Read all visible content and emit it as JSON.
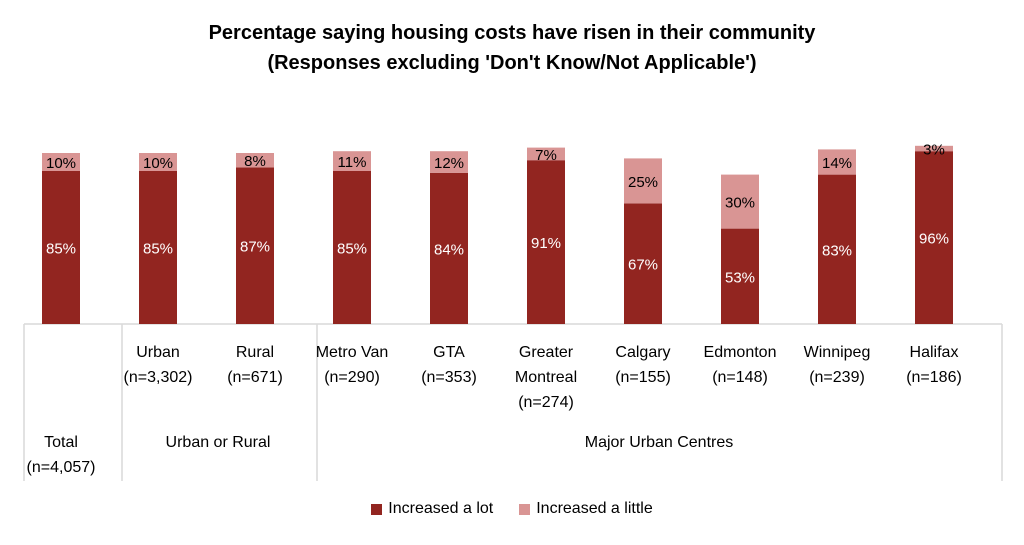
{
  "chart_data": {
    "type": "bar",
    "stacked": true,
    "title": "Percentage saying housing costs have risen in their community",
    "subtitle": "(Responses excluding 'Don't Know/Not Applicable')",
    "xlabel": "",
    "ylabel": "",
    "ylim": [
      0,
      100
    ],
    "grid": false,
    "legend_position": "bottom",
    "categories": [
      {
        "name": "Total",
        "n": "(n=4,057)",
        "group": 0
      },
      {
        "name": "Urban",
        "n": "(n=3,302)",
        "group": 1
      },
      {
        "name": "Rural",
        "n": "(n=671)",
        "group": 1
      },
      {
        "name": "Metro Van",
        "n": "(n=290)",
        "group": 2
      },
      {
        "name": "GTA",
        "n": "(n=353)",
        "group": 2
      },
      {
        "name": "Greater Montreal",
        "n": "(n=274)",
        "group": 2
      },
      {
        "name": "Calgary",
        "n": "(n=155)",
        "group": 2
      },
      {
        "name": "Edmonton",
        "n": "(n=148)",
        "group": 2
      },
      {
        "name": "Winnipeg",
        "n": "(n=239)",
        "group": 2
      },
      {
        "name": "Halifax",
        "n": "(n=186)",
        "group": 2
      }
    ],
    "groups": [
      "",
      "Urban or Rural",
      "Major Urban Centres"
    ],
    "series": [
      {
        "name": "Increased a lot",
        "color": "#922520",
        "values": [
          85,
          85,
          87,
          85,
          84,
          91,
          67,
          53,
          83,
          96
        ],
        "labels": [
          "85%",
          "85%",
          "87%",
          "85%",
          "84%",
          "91%",
          "67%",
          "53%",
          "83%",
          "96%"
        ]
      },
      {
        "name": "Increased a little",
        "color": "#d99594",
        "values": [
          10,
          10,
          8,
          11,
          12,
          7,
          25,
          30,
          14,
          3
        ],
        "labels": [
          "10%",
          "10%",
          "8%",
          "11%",
          "12%",
          "7%",
          "25%",
          "30%",
          "14%",
          "3%"
        ]
      }
    ]
  }
}
